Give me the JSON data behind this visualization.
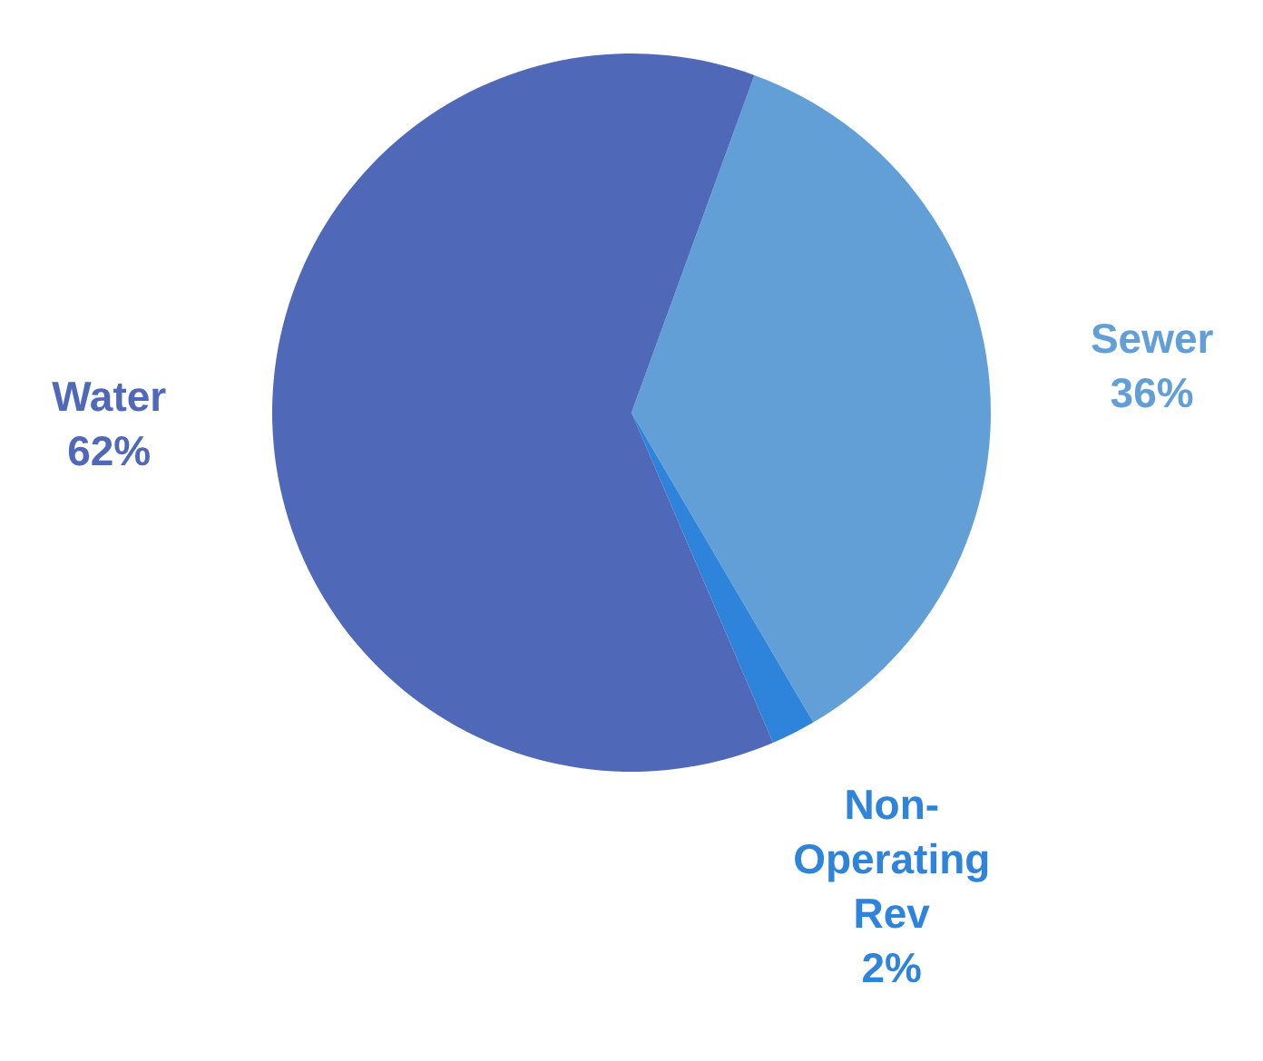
{
  "chart_data": {
    "type": "pie",
    "categories": [
      "Sewer",
      "Non-Operating Rev",
      "Water"
    ],
    "values": [
      36,
      2,
      62
    ],
    "value_labels": [
      "36%",
      "2%",
      "62%"
    ],
    "colors": [
      "#629fd6",
      "#2e83db",
      "#4f68b8"
    ],
    "legend": false
  }
}
